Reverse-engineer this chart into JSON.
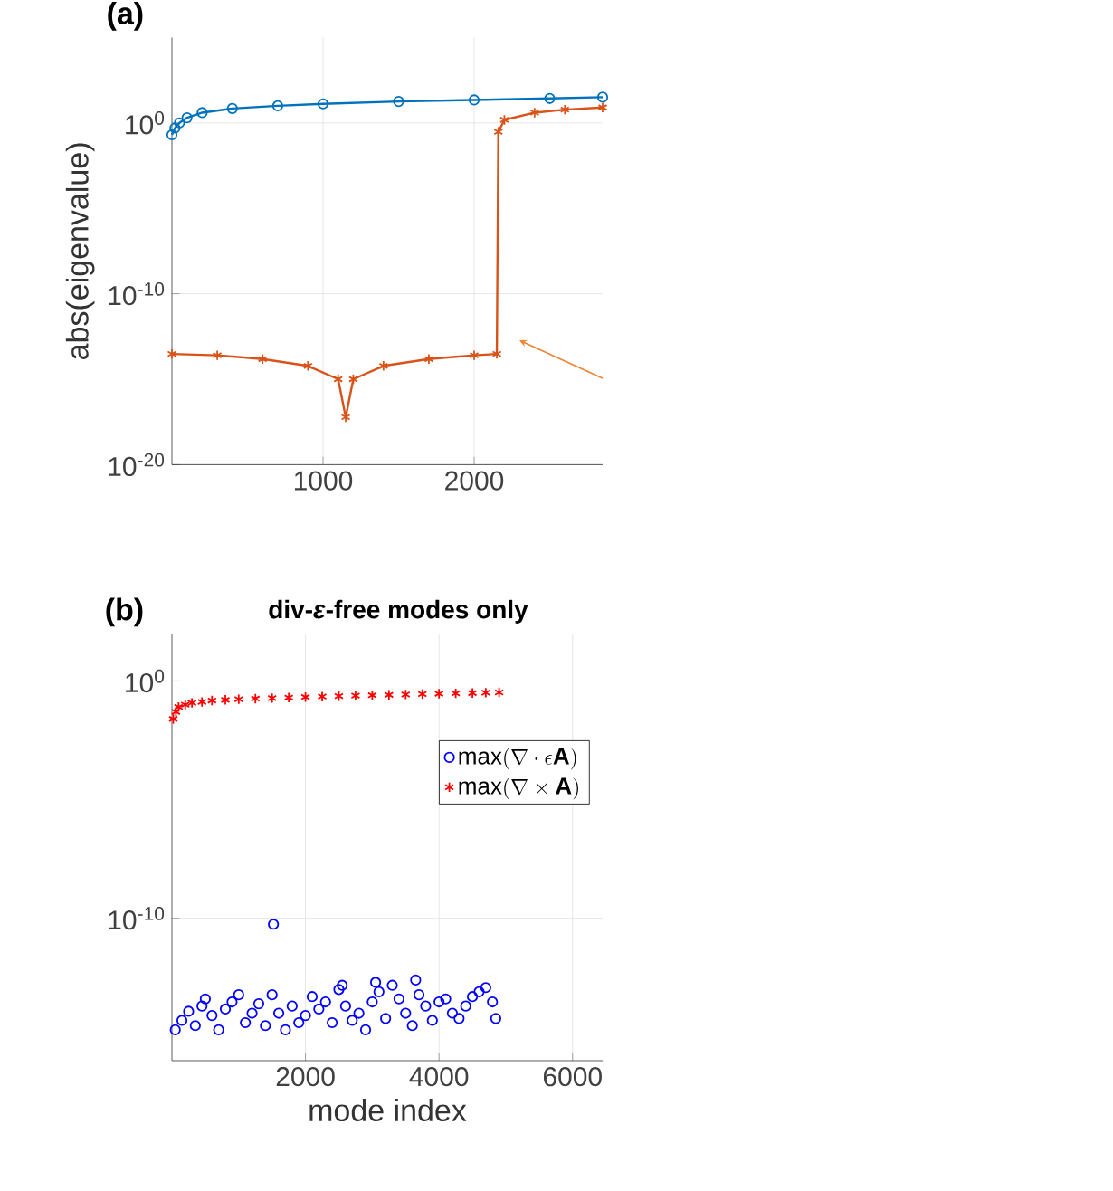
{
  "chart_data": [
    {
      "type": "line",
      "annotations": [
        "(a)"
      ],
      "ylabel": "abs(eigenvalue)",
      "log": "y",
      "grid": true,
      "xlim": [
        0,
        2850
      ],
      "xticks": [
        1000,
        2000
      ],
      "ylim": [
        1e-20,
        100000.0
      ],
      "yticks": [
        {
          "value": 1e-20,
          "label": "10$^{-20}$"
        },
        {
          "value": 1e-10,
          "label": "10$^{-10}$"
        },
        {
          "value": 1,
          "label": "10$^{0}$"
        }
      ],
      "series": [
        {
          "color": "#0072bd",
          "marker": "circle",
          "x": [
            0,
            20,
            50,
            100,
            200,
            400,
            700,
            1000,
            1500,
            2000,
            2500,
            2850
          ],
          "values": [
            0.2,
            0.5,
            1,
            2,
            4,
            7,
            10,
            13,
            18,
            22,
            27,
            32
          ]
        },
        {
          "color": "#d95319",
          "marker": "cross",
          "x": [
            0,
            300,
            600,
            900,
            1100,
            1150,
            1200,
            1400,
            1700,
            2000,
            2150,
            2160,
            2200,
            2400,
            2600,
            2850
          ],
          "values": [
            3e-14,
            2.5e-14,
            1.5e-14,
            6e-15,
            1e-15,
            6e-18,
            1e-15,
            6e-15,
            1.5e-14,
            2.5e-14,
            3e-14,
            0.3,
            1.5,
            4,
            6,
            8
          ]
        }
      ]
    },
    {
      "type": "scatter",
      "title": "div-*ε*-free modes only",
      "annotations": [
        "(b)"
      ],
      "xlabel": "mode index",
      "log": "y",
      "grid": true,
      "legend": "top right",
      "xlim": [
        0,
        6450
      ],
      "xticks": [
        2000,
        4000,
        6000
      ],
      "ylim": [
        1e-16,
        100.0
      ],
      "yticks": [
        {
          "value": 1e-10,
          "label": "10$^{-10}$"
        },
        {
          "value": 1,
          "label": "10$^{0}$"
        }
      ],
      "series": [
        {
          "name": "\\max(\\nabla\\cdot\\epsilon\\mathbf{A})",
          "color": "#0000ff",
          "marker": "circle",
          "x": [
            50,
            150,
            250,
            350,
            450,
            500,
            600,
            700,
            800,
            900,
            1000,
            1100,
            1200,
            1300,
            1400,
            1500,
            1520,
            1600,
            1700,
            1800,
            1900,
            2000,
            2100,
            2200,
            2300,
            2400,
            2500,
            2550,
            2600,
            2700,
            2800,
            2900,
            3000,
            3050,
            3100,
            3200,
            3300,
            3400,
            3500,
            3600,
            3650,
            3700,
            3800,
            3900,
            4000,
            4100,
            4200,
            4300,
            4400,
            4500,
            4600,
            4700,
            4800,
            4850
          ],
          "values": [
            2e-15,
            5e-15,
            1.2e-14,
            3e-15,
            2e-14,
            4e-14,
            8e-15,
            2e-15,
            1.5e-14,
            3e-14,
            6e-14,
            4e-15,
            1e-14,
            2.5e-14,
            3e-15,
            6e-14,
            5.6e-11,
            1e-14,
            2e-15,
            2e-14,
            4e-15,
            8e-15,
            5e-14,
            1.5e-14,
            3e-14,
            4e-15,
            1e-13,
            1.5e-13,
            2e-14,
            5e-15,
            1e-14,
            2e-15,
            3e-14,
            2e-13,
            8e-14,
            6e-15,
            1.5e-13,
            4e-14,
            1e-14,
            3e-15,
            2.5e-13,
            6e-14,
            2e-14,
            5e-15,
            3e-14,
            4e-14,
            1e-14,
            6e-15,
            2e-14,
            5e-14,
            8e-14,
            1.2e-13,
            3e-14,
            6e-15
          ]
        },
        {
          "name": "\\max(\\nabla\\times\\mathbf{A})",
          "color": "#ff0000",
          "marker": "cross",
          "x": [
            20,
            60,
            100,
            200,
            300,
            450,
            600,
            800,
            1000,
            1250,
            1500,
            1750,
            2000,
            2250,
            2500,
            2750,
            3000,
            3250,
            3500,
            3750,
            4000,
            4250,
            4500,
            4700,
            4900
          ],
          "values": [
            0.025,
            0.05,
            0.08,
            0.1,
            0.12,
            0.13,
            0.15,
            0.16,
            0.17,
            0.18,
            0.19,
            0.2,
            0.21,
            0.22,
            0.23,
            0.24,
            0.25,
            0.26,
            0.27,
            0.28,
            0.29,
            0.3,
            0.31,
            0.32,
            0.33
          ]
        }
      ]
    }
  ]
}
